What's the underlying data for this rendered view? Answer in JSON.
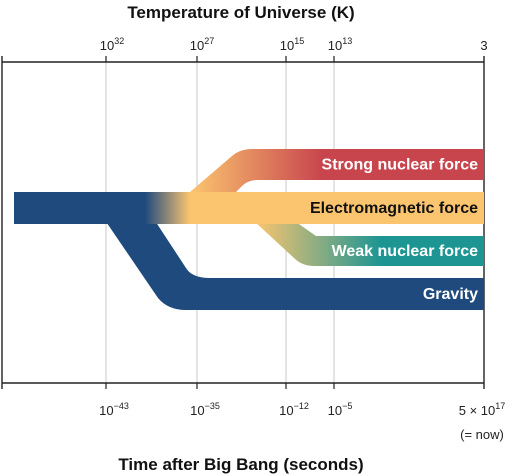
{
  "title_top": "Temperature of Universe (K)",
  "title_bottom": "Time after Big Bang (seconds)",
  "temperature_ticks": [
    {
      "base": "10",
      "exp": "32"
    },
    {
      "base": "10",
      "exp": "27"
    },
    {
      "base": "10",
      "exp": "15"
    },
    {
      "base": "10",
      "exp": "13"
    },
    {
      "base": "3",
      "exp": ""
    }
  ],
  "time_ticks": [
    {
      "base": "10",
      "exp": "−43"
    },
    {
      "base": "10",
      "exp": "−35"
    },
    {
      "base": "10",
      "exp": "−12"
    },
    {
      "base": "10",
      "exp": "−5"
    },
    {
      "base": "5 × 10",
      "exp": "17"
    }
  ],
  "now_note": "(= now)",
  "forces": {
    "strong": "Strong nuclear force",
    "electromagnetic": "Electromagnetic force",
    "weak": "Weak nuclear force",
    "gravity": "Gravity"
  },
  "colors": {
    "unified": "#1f4a7e",
    "strong": "#c8454d",
    "electromagnetic": "#fbc570",
    "weak": "#1c9593",
    "gravity": "#1f4a7e",
    "gridline": "#c8c8c8",
    "axis": "#222222"
  }
}
